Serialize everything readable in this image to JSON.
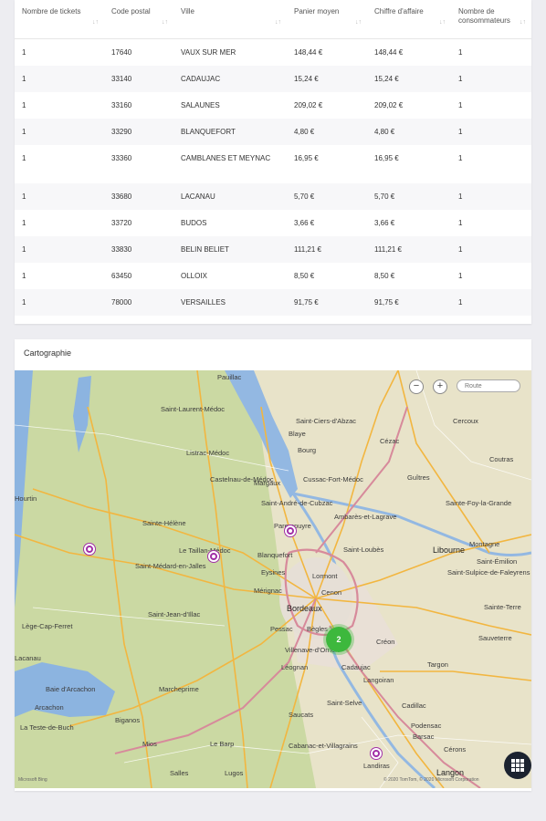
{
  "table": {
    "columns": [
      {
        "label": "Nombre de tickets",
        "sort_icon": "sort-icon"
      },
      {
        "label": "Code postal",
        "sort_icon": "sort-icon"
      },
      {
        "label": "Ville",
        "sort_icon": "sort-icon"
      },
      {
        "label": "Panier moyen",
        "sort_icon": "sort-icon"
      },
      {
        "label": "Chiffre d'affaire",
        "sort_icon": "sort-icon"
      },
      {
        "label": "Nombre de consommateurs",
        "sort_icon": "sort-icon"
      }
    ],
    "rows": [
      [
        "1",
        "17640",
        "VAUX SUR MER",
        "148,44 €",
        "148,44 €",
        "1"
      ],
      [
        "1",
        "33140",
        "CADAUJAC",
        "15,24 €",
        "15,24 €",
        "1"
      ],
      [
        "1",
        "33160",
        "SALAUNES",
        "209,02 €",
        "209,02 €",
        "1"
      ],
      [
        "1",
        "33290",
        "BLANQUEFORT",
        "4,80 €",
        "4,80 €",
        "1"
      ],
      [
        "1",
        "33360",
        "CAMBLANES ET MEYNAC",
        "16,95 €",
        "16,95 €",
        "1"
      ],
      [
        "1",
        "33680",
        "LACANAU",
        "5,70 €",
        "5,70 €",
        "1"
      ],
      [
        "1",
        "33720",
        "BUDOS",
        "3,66 €",
        "3,66 €",
        "1"
      ],
      [
        "1",
        "33830",
        "BELIN BELIET",
        "111,21 €",
        "111,21 €",
        "1"
      ],
      [
        "1",
        "63450",
        "OLLOIX",
        "8,50 €",
        "8,50 €",
        "1"
      ],
      [
        "1",
        "78000",
        "VERSAILLES",
        "91,75 €",
        "91,75 €",
        "1"
      ]
    ]
  },
  "map": {
    "title": "Cartographie",
    "zoom_out": "−",
    "zoom_in": "+",
    "route_placeholder": "Route",
    "cluster_count": "2",
    "copyright": "© 2020 TomTom, © 2020 Microsoft Corporation",
    "provider": "Microsoft Bing",
    "labels": {
      "pauillac": "Pauillac",
      "saint_laurent_medoc": "Saint-Laurent-Médoc",
      "saint_ciers": "Saint-Ciers-d'Abzac",
      "libourne": "Libourne",
      "blaye": "Blaye",
      "bordeaux": "Bordeaux",
      "merignac": "Mérignac",
      "pessac": "Pessac",
      "begles": "Bègles",
      "cenon": "Cenon",
      "lormont": "Lormont",
      "blanquefort": "Blanquefort",
      "eysines": "Eysines",
      "saint_medard": "Saint-Médard-en-Jalles",
      "sainte_helene": "Sainte-Hélène",
      "saint_jean_illac": "Saint-Jean-d'Illac",
      "lege_cap_ferret": "Lège-Cap-Ferret",
      "villenave": "Villenave-d'Ornon",
      "leognan": "Léognan",
      "cadaujac": "Cadaujac",
      "langoiran": "Langoiran",
      "targon": "Targon",
      "creon": "Créon",
      "la_teste": "La Teste-de-Buch",
      "arcachon": "Arcachon",
      "marcheprime": "Marcheprime",
      "salles": "Salles",
      "mios": "Mios",
      "le_barp": "Le Barp",
      "saucats": "Saucats",
      "cadillac": "Cadillac",
      "langon": "Langon",
      "cerons": "Cérons",
      "barsac": "Barsac",
      "podensac": "Podensac",
      "saint_selve": "Saint-Selve",
      "cabanac": "Cabanac-et-Villagrains",
      "landiras": "Landiras",
      "saint_emilion": "Saint-Émilion",
      "sainte_foy": "Sainte-Foy-la-Grande",
      "saint_andre": "Saint-André-de-Cubzac",
      "ambares": "Ambarès-et-Lagrave",
      "saint_loubes": "Saint-Loubès",
      "le_taillan": "Le Taillan-Médoc",
      "parempuyre": "Parempuyre",
      "castelnau": "Castelnau-de-Médoc",
      "listrac": "Listrac-Médoc",
      "margaux": "Margaux",
      "cussac": "Cussac-Fort-Médoc",
      "bourg": "Bourg",
      "cezac": "Cézac",
      "guitres": "Guîtres",
      "coutras": "Coutras",
      "baie_arcachon": "Baie d'Arcachon",
      "lacanau": "Lacanau",
      "hourtin": "Hourtin",
      "saint_sulpice": "Saint-Sulpice-de-Faleyrens",
      "montagne": "Montagne",
      "cercoux": "Cercoux",
      "la_reole": "Sainte-Terre",
      "sauveterre": "Sauveterre",
      "lugos": "Lugos",
      "biganos": "Biganos"
    }
  }
}
